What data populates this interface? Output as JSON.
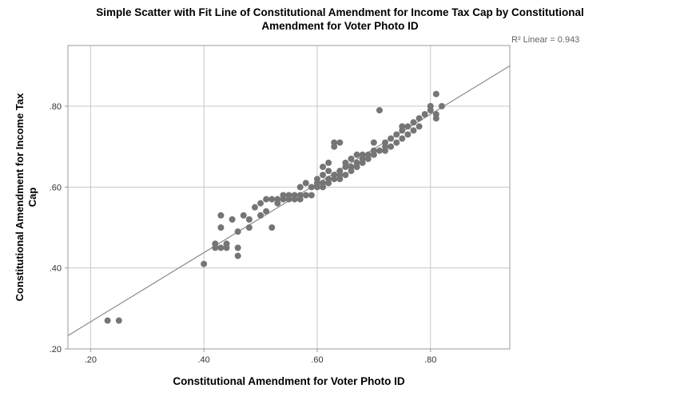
{
  "title": {
    "line1": "Simple Scatter with Fit Line of Constitutional Amendment for Income Tax Cap by Constitutional",
    "line2": "Amendment for Voter Photo ID"
  },
  "annotation": {
    "r2_label": "R² Linear = 0.943"
  },
  "axes": {
    "x_label": "Constitutional Amendment for Voter Photo ID",
    "y_label_line1": "Constitutional Amendment for Income Tax",
    "y_label_line2": "Cap",
    "x_ticks": [
      ".20",
      ".40",
      ".60",
      ".80"
    ],
    "y_ticks": [
      ".20",
      ".40",
      ".60",
      ".80"
    ]
  },
  "chart_data": {
    "type": "scatter",
    "title": "Simple Scatter with Fit Line of Constitutional Amendment for Income Tax Cap by Constitutional Amendment for Voter Photo ID",
    "xlabel": "Constitutional Amendment for Voter Photo ID",
    "ylabel": "Constitutional Amendment for Income Tax Cap",
    "xlim": [
      0.16,
      0.94
    ],
    "ylim": [
      0.2,
      0.95
    ],
    "x_tick_values": [
      0.2,
      0.4,
      0.6,
      0.8
    ],
    "y_tick_values": [
      0.2,
      0.4,
      0.6,
      0.8
    ],
    "grid": true,
    "legend": "none",
    "r_squared": 0.943,
    "fit_line": {
      "slope": 0.855,
      "intercept": 0.096
    },
    "point_color": "#757575",
    "line_color": "#8c8c8c",
    "grid_color": "#c8c8c8",
    "frame_color": "#9b9b9b",
    "points": [
      [
        0.23,
        0.27
      ],
      [
        0.25,
        0.27
      ],
      [
        0.4,
        0.41
      ],
      [
        0.42,
        0.45
      ],
      [
        0.42,
        0.46
      ],
      [
        0.43,
        0.45
      ],
      [
        0.43,
        0.5
      ],
      [
        0.43,
        0.53
      ],
      [
        0.44,
        0.45
      ],
      [
        0.44,
        0.46
      ],
      [
        0.45,
        0.52
      ],
      [
        0.46,
        0.43
      ],
      [
        0.46,
        0.45
      ],
      [
        0.46,
        0.49
      ],
      [
        0.47,
        0.53
      ],
      [
        0.48,
        0.5
      ],
      [
        0.48,
        0.52
      ],
      [
        0.49,
        0.55
      ],
      [
        0.5,
        0.53
      ],
      [
        0.5,
        0.56
      ],
      [
        0.51,
        0.54
      ],
      [
        0.51,
        0.57
      ],
      [
        0.52,
        0.5
      ],
      [
        0.52,
        0.57
      ],
      [
        0.53,
        0.56
      ],
      [
        0.53,
        0.57
      ],
      [
        0.54,
        0.57
      ],
      [
        0.54,
        0.58
      ],
      [
        0.55,
        0.57
      ],
      [
        0.55,
        0.58
      ],
      [
        0.56,
        0.57
      ],
      [
        0.56,
        0.58
      ],
      [
        0.57,
        0.57
      ],
      [
        0.57,
        0.58
      ],
      [
        0.57,
        0.6
      ],
      [
        0.58,
        0.58
      ],
      [
        0.58,
        0.61
      ],
      [
        0.59,
        0.58
      ],
      [
        0.59,
        0.6
      ],
      [
        0.6,
        0.6
      ],
      [
        0.6,
        0.61
      ],
      [
        0.6,
        0.62
      ],
      [
        0.61,
        0.6
      ],
      [
        0.61,
        0.61
      ],
      [
        0.61,
        0.63
      ],
      [
        0.61,
        0.65
      ],
      [
        0.62,
        0.61
      ],
      [
        0.62,
        0.62
      ],
      [
        0.62,
        0.64
      ],
      [
        0.62,
        0.66
      ],
      [
        0.63,
        0.62
      ],
      [
        0.63,
        0.63
      ],
      [
        0.63,
        0.7
      ],
      [
        0.63,
        0.71
      ],
      [
        0.64,
        0.62
      ],
      [
        0.64,
        0.63
      ],
      [
        0.64,
        0.64
      ],
      [
        0.64,
        0.71
      ],
      [
        0.65,
        0.63
      ],
      [
        0.65,
        0.65
      ],
      [
        0.65,
        0.66
      ],
      [
        0.66,
        0.64
      ],
      [
        0.66,
        0.65
      ],
      [
        0.66,
        0.67
      ],
      [
        0.67,
        0.65
      ],
      [
        0.67,
        0.66
      ],
      [
        0.67,
        0.68
      ],
      [
        0.68,
        0.66
      ],
      [
        0.68,
        0.67
      ],
      [
        0.68,
        0.68
      ],
      [
        0.69,
        0.67
      ],
      [
        0.69,
        0.68
      ],
      [
        0.7,
        0.68
      ],
      [
        0.7,
        0.69
      ],
      [
        0.7,
        0.71
      ],
      [
        0.71,
        0.69
      ],
      [
        0.71,
        0.79
      ],
      [
        0.72,
        0.69
      ],
      [
        0.72,
        0.7
      ],
      [
        0.72,
        0.71
      ],
      [
        0.73,
        0.7
      ],
      [
        0.73,
        0.72
      ],
      [
        0.74,
        0.71
      ],
      [
        0.74,
        0.73
      ],
      [
        0.75,
        0.72
      ],
      [
        0.75,
        0.74
      ],
      [
        0.75,
        0.75
      ],
      [
        0.76,
        0.73
      ],
      [
        0.76,
        0.75
      ],
      [
        0.77,
        0.74
      ],
      [
        0.77,
        0.76
      ],
      [
        0.78,
        0.75
      ],
      [
        0.78,
        0.77
      ],
      [
        0.79,
        0.78
      ],
      [
        0.8,
        0.79
      ],
      [
        0.8,
        0.8
      ],
      [
        0.81,
        0.77
      ],
      [
        0.81,
        0.78
      ],
      [
        0.81,
        0.83
      ],
      [
        0.82,
        0.8
      ]
    ]
  }
}
